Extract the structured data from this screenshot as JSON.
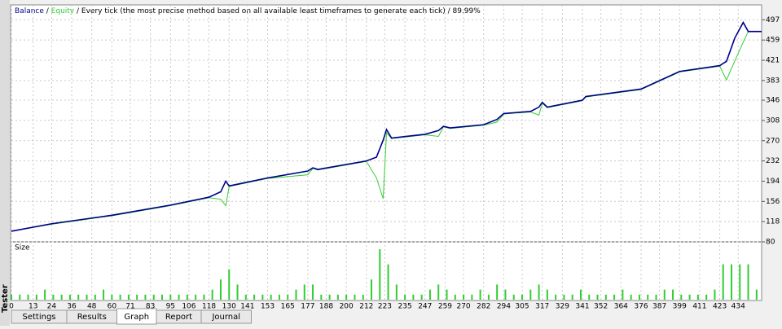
{
  "chart_data": {
    "type": "line",
    "title_parts": [
      "Balance",
      " / ",
      "Equity",
      " / Every tick (the most precise method based on all available least timeframes to generate each tick) / 89.99%"
    ],
    "x": [
      0,
      24,
      60,
      95,
      118,
      125,
      128,
      130,
      153,
      177,
      180,
      183,
      212,
      218,
      222,
      224,
      227,
      247,
      255,
      258,
      262,
      282,
      290,
      294,
      310,
      315,
      317,
      320,
      341,
      343,
      376,
      399,
      423,
      427,
      432,
      437,
      440,
      448
    ],
    "series": [
      {
        "name": "Balance",
        "color": "#00008b",
        "values": [
          100,
          114,
          130,
          149,
          164,
          174,
          194,
          185,
          200,
          213,
          219,
          216,
          232,
          239,
          271,
          291,
          275,
          282,
          289,
          297,
          294,
          300,
          310,
          321,
          325,
          333,
          342,
          333,
          346,
          353,
          367,
          400,
          411,
          419,
          463,
          492,
          475,
          475
        ]
      },
      {
        "name": "Equity",
        "color": "#32cd32",
        "values": [
          100,
          113,
          129,
          148,
          163,
          160,
          148,
          184,
          199,
          206,
          218,
          215,
          231,
          200,
          161,
          285,
          274,
          281,
          278,
          296,
          293,
          299,
          305,
          320,
          324,
          318,
          340,
          332,
          345,
          352,
          366,
          399,
          410,
          384,
          420,
          455,
          475,
          475
        ]
      }
    ],
    "xlim": [
      0,
      448
    ],
    "xticks": [
      0,
      13,
      24,
      36,
      48,
      60,
      71,
      83,
      95,
      106,
      118,
      130,
      141,
      153,
      165,
      177,
      188,
      200,
      212,
      223,
      235,
      247,
      259,
      270,
      282,
      294,
      305,
      317,
      329,
      341,
      352,
      364,
      376,
      387,
      399,
      411,
      423,
      434
    ],
    "ylim": [
      80,
      525
    ],
    "yticks": [
      80,
      118,
      156,
      194,
      232,
      270,
      308,
      346,
      383,
      421,
      459,
      497
    ],
    "grid": true,
    "size_panel": {
      "label": "Size",
      "color": "#32cd32",
      "ylim": [
        0,
        10
      ],
      "x": [
        0,
        5,
        10,
        15,
        20,
        25,
        30,
        35,
        40,
        45,
        50,
        55,
        60,
        65,
        70,
        75,
        80,
        85,
        90,
        95,
        100,
        105,
        110,
        115,
        120,
        125,
        130,
        135,
        140,
        145,
        150,
        155,
        160,
        165,
        170,
        175,
        180,
        185,
        190,
        195,
        200,
        205,
        210,
        215,
        220,
        225,
        230,
        235,
        240,
        245,
        250,
        255,
        260,
        265,
        270,
        275,
        280,
        285,
        290,
        295,
        300,
        305,
        310,
        315,
        320,
        325,
        330,
        335,
        340,
        345,
        350,
        355,
        360,
        365,
        370,
        375,
        380,
        385,
        390,
        395,
        400,
        405,
        410,
        415,
        420,
        425,
        430,
        435,
        440,
        445
      ],
      "values": [
        1,
        1,
        1,
        1,
        2,
        1,
        1,
        1,
        1,
        1,
        1,
        2,
        1,
        1,
        1,
        1,
        1,
        1,
        1,
        1,
        1,
        1,
        1,
        1,
        2,
        4,
        6,
        3,
        1,
        1,
        1,
        1,
        1,
        1,
        2,
        3,
        3,
        1,
        1,
        1,
        1,
        1,
        1,
        4,
        10,
        7,
        3,
        1,
        1,
        1,
        2,
        3,
        2,
        1,
        1,
        1,
        2,
        1,
        3,
        2,
        1,
        1,
        2,
        3,
        2,
        1,
        1,
        1,
        2,
        1,
        1,
        1,
        1,
        2,
        1,
        1,
        1,
        1,
        2,
        2,
        1,
        1,
        1,
        1,
        2,
        7,
        7,
        7,
        7,
        2
      ]
    }
  },
  "tabs": [
    "Settings",
    "Results",
    "Graph",
    "Report",
    "Journal"
  ],
  "active_tab": "Graph",
  "side_label": "Tester"
}
